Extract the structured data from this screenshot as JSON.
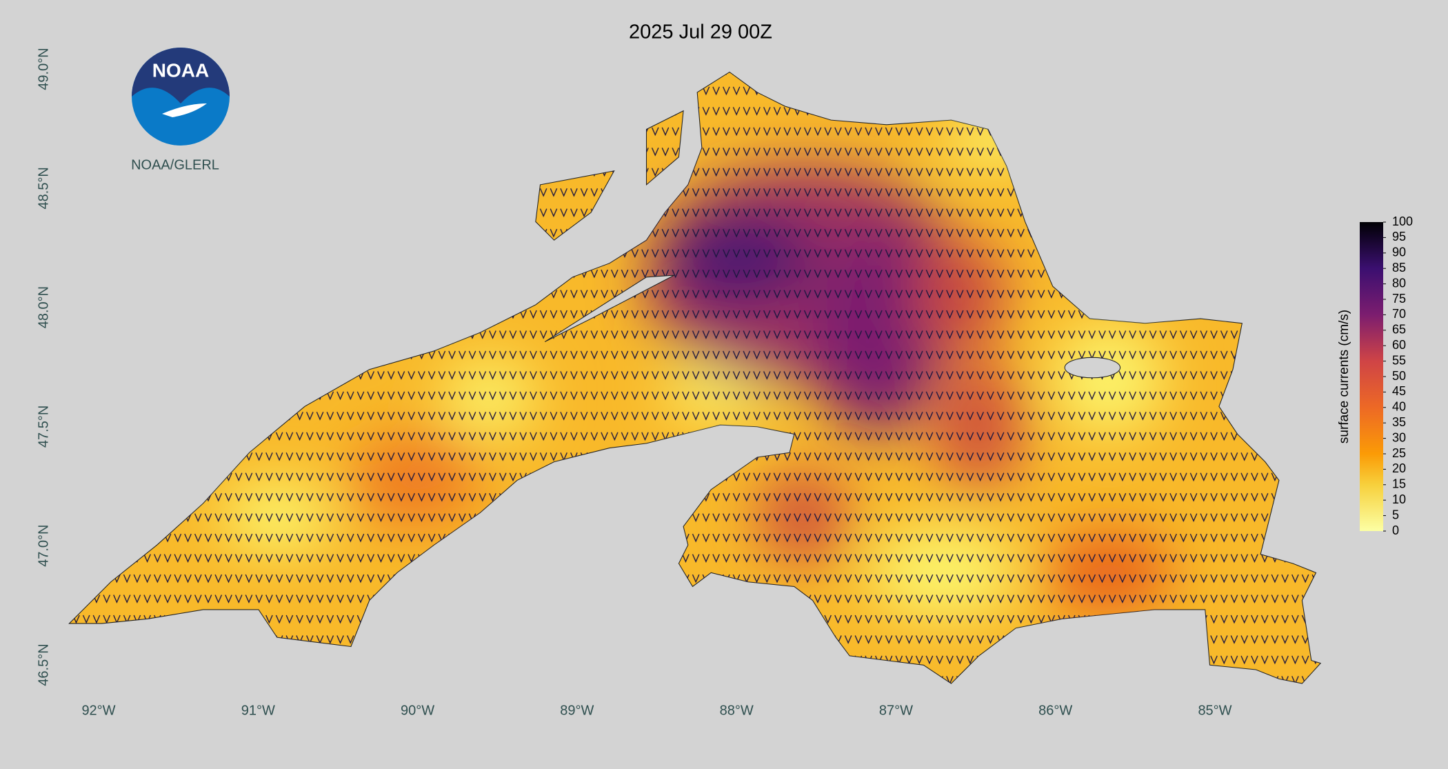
{
  "title": "2025 Jul 29 00Z",
  "logo_text": "NOAA",
  "credit": "NOAA/GLERL",
  "lat_labels": [
    {
      "value": 49.0,
      "label": "49.0°N"
    },
    {
      "value": 48.5,
      "label": "48.5°N"
    },
    {
      "value": 48.0,
      "label": "48.0°N"
    },
    {
      "value": 47.5,
      "label": "47.5°N"
    },
    {
      "value": 47.0,
      "label": "47.0°N"
    },
    {
      "value": 46.5,
      "label": "46.5°N"
    }
  ],
  "lon_labels": [
    {
      "value": -92,
      "label": "92°W"
    },
    {
      "value": -91,
      "label": "91°W"
    },
    {
      "value": -90,
      "label": "90°W"
    },
    {
      "value": -89,
      "label": "89°W"
    },
    {
      "value": -88,
      "label": "88°W"
    },
    {
      "value": -87,
      "label": "87°W"
    },
    {
      "value": -86,
      "label": "86°W"
    },
    {
      "value": -85,
      "label": "85°W"
    }
  ],
  "colorbar": {
    "label": "surface currents (cm/s)",
    "ticks": [
      0,
      5,
      10,
      15,
      20,
      25,
      30,
      35,
      40,
      45,
      50,
      55,
      60,
      65,
      70,
      75,
      80,
      85,
      90,
      95,
      100
    ]
  }
}
